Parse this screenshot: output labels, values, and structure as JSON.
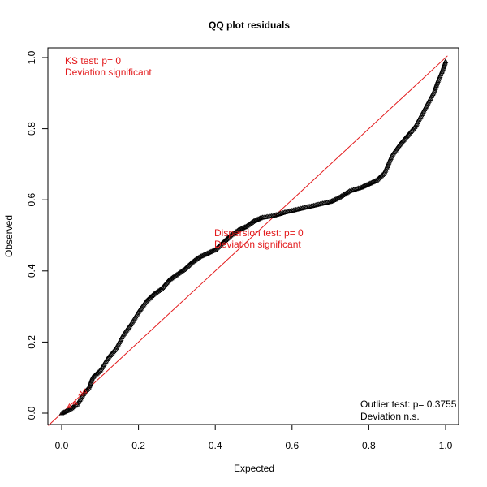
{
  "chart_data": {
    "type": "scatter",
    "title": "QQ plot residuals",
    "xlabel": "Expected",
    "ylabel": "Observed",
    "xlim": [
      0,
      1
    ],
    "ylim": [
      0,
      1
    ],
    "xticks": [
      "0.0",
      "0.2",
      "0.4",
      "0.6",
      "0.8",
      "1.0"
    ],
    "yticks": [
      "0.0",
      "0.2",
      "0.4",
      "0.6",
      "0.8",
      "1.0"
    ],
    "marker": "open-triangle",
    "grid": false,
    "reference_line": {
      "from": [
        0,
        0
      ],
      "to": [
        1,
        1
      ],
      "color": "#e31a1c"
    },
    "curve_points": [
      [
        0.0,
        0.0
      ],
      [
        0.02,
        0.01
      ],
      [
        0.04,
        0.025
      ],
      [
        0.06,
        0.06
      ],
      [
        0.07,
        0.07
      ],
      [
        0.08,
        0.1
      ],
      [
        0.1,
        0.12
      ],
      [
        0.12,
        0.155
      ],
      [
        0.14,
        0.18
      ],
      [
        0.16,
        0.22
      ],
      [
        0.18,
        0.25
      ],
      [
        0.2,
        0.285
      ],
      [
        0.22,
        0.315
      ],
      [
        0.24,
        0.335
      ],
      [
        0.26,
        0.35
      ],
      [
        0.28,
        0.375
      ],
      [
        0.3,
        0.39
      ],
      [
        0.32,
        0.405
      ],
      [
        0.34,
        0.425
      ],
      [
        0.36,
        0.44
      ],
      [
        0.38,
        0.45
      ],
      [
        0.4,
        0.46
      ],
      [
        0.42,
        0.48
      ],
      [
        0.44,
        0.5
      ],
      [
        0.46,
        0.515
      ],
      [
        0.48,
        0.525
      ],
      [
        0.5,
        0.54
      ],
      [
        0.52,
        0.55
      ],
      [
        0.55,
        0.555
      ],
      [
        0.58,
        0.565
      ],
      [
        0.62,
        0.575
      ],
      [
        0.66,
        0.585
      ],
      [
        0.7,
        0.595
      ],
      [
        0.72,
        0.605
      ],
      [
        0.75,
        0.625
      ],
      [
        0.78,
        0.635
      ],
      [
        0.8,
        0.645
      ],
      [
        0.82,
        0.655
      ],
      [
        0.84,
        0.675
      ],
      [
        0.86,
        0.725
      ],
      [
        0.88,
        0.755
      ],
      [
        0.9,
        0.78
      ],
      [
        0.92,
        0.805
      ],
      [
        0.94,
        0.845
      ],
      [
        0.96,
        0.885
      ],
      [
        0.97,
        0.905
      ],
      [
        0.98,
        0.935
      ],
      [
        0.99,
        0.96
      ],
      [
        1.0,
        0.99
      ]
    ],
    "early_red_points": [
      [
        0.02,
        0.02
      ],
      [
        0.035,
        0.03
      ],
      [
        0.05,
        0.055
      ],
      [
        0.06,
        0.062
      ]
    ],
    "annotations": {
      "ks_line1": "KS test: p= 0",
      "ks_line2": "Deviation  significant",
      "dispersion_line1": "Dispersion test: p= 0",
      "dispersion_line2": "Deviation  significant",
      "outlier_line1": "Outlier test: p= 0.3755",
      "outlier_line2": "Deviation  n.s."
    },
    "colors": {
      "points": "#000000",
      "reference": "#e31a1c",
      "significant_text": "#e31a1c",
      "ns_text": "#000000"
    }
  }
}
